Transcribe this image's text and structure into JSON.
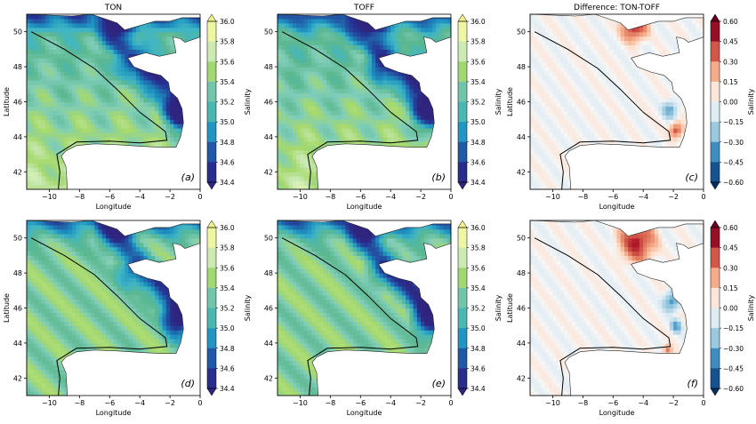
{
  "chart_data": [
    {
      "type": "heatmap",
      "panel_id": "a",
      "title": "TON",
      "panel_label": "(a)",
      "xlabel": "Longitude",
      "ylabel": "Latitude",
      "xlim": [
        -11.5,
        0
      ],
      "ylim": [
        41,
        51
      ],
      "xticks": [
        "−10",
        "−8",
        "−6",
        "−4",
        "−2",
        "0"
      ],
      "yticks": [
        "42",
        "44",
        "46",
        "48",
        "50"
      ],
      "colorbar": {
        "label": "Salinity",
        "colormap": "YlGnBu",
        "ticks": [
          "36.0",
          "35.8",
          "35.6",
          "35.4",
          "35.2",
          "35.0",
          "34.8",
          "34.6",
          "34.4"
        ]
      }
    },
    {
      "type": "heatmap",
      "panel_id": "b",
      "title": "TOFF",
      "panel_label": "(b)",
      "xlabel": "Longitude",
      "ylabel": "",
      "xlim": [
        -11.5,
        0
      ],
      "ylim": [
        41,
        51
      ],
      "xticks": [
        "−10",
        "−8",
        "−6",
        "−4",
        "−2",
        "0"
      ],
      "yticks": [
        "42",
        "44",
        "46",
        "48",
        "50"
      ],
      "colorbar": {
        "label": "Salinity",
        "colormap": "YlGnBu",
        "ticks": [
          "36.0",
          "35.8",
          "35.6",
          "35.4",
          "35.2",
          "35.0",
          "34.8",
          "34.6",
          "34.4"
        ]
      }
    },
    {
      "type": "heatmap",
      "panel_id": "c",
      "title": "Difference: TON-TOFF",
      "panel_label": "(c)",
      "xlabel": "Longitude",
      "ylabel": "Latitude",
      "xlim": [
        -11.5,
        0
      ],
      "ylim": [
        41,
        51
      ],
      "xticks": [
        "−10",
        "−8",
        "−6",
        "−4",
        "−2",
        "0"
      ],
      "yticks": [
        "42",
        "44",
        "46",
        "48",
        "50"
      ],
      "colorbar": {
        "label": "Salinity",
        "colormap": "RdBu_r",
        "ticks": [
          "0.60",
          "0.45",
          "0.30",
          "0.15",
          "0.00",
          "−0.15",
          "−0.30",
          "−0.45",
          "−0.60"
        ]
      }
    },
    {
      "type": "heatmap",
      "panel_id": "d",
      "title": "",
      "panel_label": "(d)",
      "xlabel": "Longitude",
      "ylabel": "Latitude",
      "xlim": [
        -11.5,
        0
      ],
      "ylim": [
        41,
        51
      ],
      "xticks": [
        "−10",
        "−8",
        "−6",
        "−4",
        "−2",
        "0"
      ],
      "yticks": [
        "42",
        "44",
        "46",
        "48",
        "50"
      ],
      "colorbar": {
        "label": "Salinity",
        "colormap": "YlGnBu",
        "ticks": [
          "36.0",
          "35.8",
          "35.6",
          "35.4",
          "35.2",
          "35.0",
          "34.8",
          "34.6",
          "34.4"
        ]
      }
    },
    {
      "type": "heatmap",
      "panel_id": "e",
      "title": "",
      "panel_label": "(e)",
      "xlabel": "Longitude",
      "ylabel": "",
      "xlim": [
        -11.5,
        0
      ],
      "ylim": [
        41,
        51
      ],
      "xticks": [
        "−10",
        "−8",
        "−6",
        "−4",
        "−2",
        "0"
      ],
      "yticks": [
        "42",
        "44",
        "46",
        "48",
        "50"
      ],
      "colorbar": {
        "label": "Salinity",
        "colormap": "YlGnBu",
        "ticks": [
          "36.0",
          "35.8",
          "35.6",
          "35.4",
          "35.2",
          "35.0",
          "34.8",
          "34.6",
          "34.4"
        ]
      }
    },
    {
      "type": "heatmap",
      "panel_id": "f",
      "title": "",
      "panel_label": "(f)",
      "xlabel": "Longitude",
      "ylabel": "Latitude",
      "xlim": [
        -11.5,
        0
      ],
      "ylim": [
        41,
        51
      ],
      "xticks": [
        "−10",
        "−8",
        "−6",
        "−4",
        "−2",
        "0"
      ],
      "yticks": [
        "42",
        "44",
        "46",
        "48",
        "50"
      ],
      "colorbar": {
        "label": "Salinity",
        "colormap": "RdBu_r",
        "ticks": [
          "0.60",
          "0.45",
          "0.30",
          "0.15",
          "0.00",
          "−0.15",
          "−0.30",
          "−0.45",
          "−0.60"
        ]
      }
    }
  ],
  "colors": {
    "salinity_ramp": [
      "#30257e",
      "#253494",
      "#225ea8",
      "#1d91c0",
      "#41b6c4",
      "#5cb88e",
      "#7fcdbb",
      "#a6d96a",
      "#c7e9b4",
      "#edf8b1",
      "#f2f28c"
    ],
    "diff_ramp": [
      "#053061",
      "#2166ac",
      "#4393c3",
      "#92c5de",
      "#d1e5f0",
      "#f7f7f7",
      "#fddbc7",
      "#f4a582",
      "#d6604d",
      "#b2182b",
      "#67001f"
    ]
  }
}
